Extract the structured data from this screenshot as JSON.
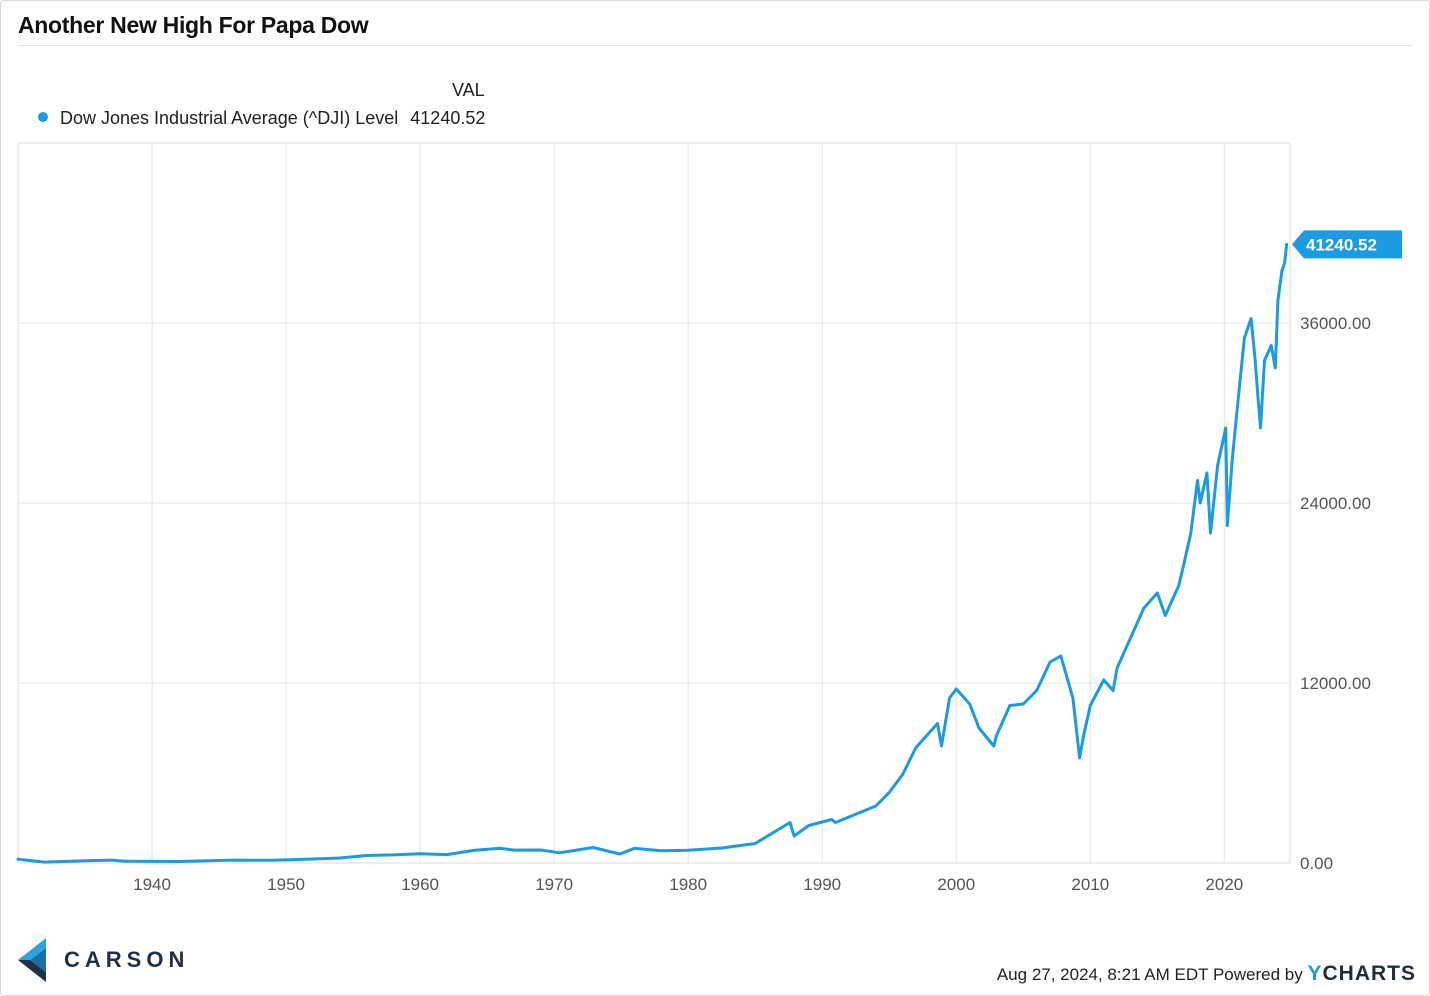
{
  "title": "Another New High For Papa Dow",
  "legend": {
    "column_header": "VAL",
    "series_label": "Dow Jones Industrial Average (^DJI) Level",
    "series_value": "41240.52"
  },
  "footer": {
    "timestamp": "Aug 27, 2024, 8:21 AM EDT",
    "powered_by": "Powered by",
    "brand_y": "Y",
    "brand_rest": "CHARTS"
  },
  "logo": {
    "text": "CARSON",
    "icon": "carson-chevron-icon"
  },
  "colors": {
    "series": "#1a9be2",
    "grid": "#e4e4e4",
    "axis_text": "#555555",
    "logo_dark": "#1f3148",
    "logo_light": "#2aa5e0"
  },
  "chart_data": {
    "type": "line",
    "title": "Another New High For Papa Dow",
    "xlabel": "",
    "ylabel": "",
    "xlim": [
      1930.0,
      2024.9
    ],
    "ylim": [
      0,
      48000
    ],
    "x_ticks": [
      1940,
      1950,
      1960,
      1970,
      1980,
      1990,
      2000,
      2010,
      2020
    ],
    "y_ticks": [
      0,
      12000,
      24000,
      36000
    ],
    "y_tick_labels": [
      "0.00",
      "12000.00",
      "24000.00",
      "36000.00"
    ],
    "grid": true,
    "legend_position": "top-left",
    "last_value_label": "41240.52",
    "series": [
      {
        "name": "Dow Jones Industrial Average (^DJI) Level",
        "x": [
          1930.0,
          1932.0,
          1935.0,
          1937.0,
          1938.0,
          1942.0,
          1946.0,
          1949.0,
          1952.0,
          1954.0,
          1956.0,
          1958.0,
          1960.0,
          1962.0,
          1964.0,
          1966.0,
          1967.0,
          1969.0,
          1970.4,
          1972.9,
          1974.9,
          1976.0,
          1978.0,
          1980.0,
          1982.5,
          1985.0,
          1987.6,
          1987.9,
          1989.0,
          1990.7,
          1991.0,
          1994.0,
          1995.0,
          1996.0,
          1997.0,
          1998.6,
          1998.9,
          1999.5,
          2000.0,
          2001.0,
          2001.7,
          2002.8,
          2003.0,
          2004.0,
          2005.0,
          2006.0,
          2007.0,
          2007.8,
          2008.7,
          2009.2,
          2009.5,
          2010.0,
          2011.0,
          2011.7,
          2012.0,
          2013.0,
          2014.0,
          2015.0,
          2015.6,
          2016.1,
          2016.6,
          2017.0,
          2017.5,
          2018.0,
          2018.2,
          2018.7,
          2018.97,
          2019.5,
          2020.1,
          2020.22,
          2020.6,
          2021.0,
          2021.5,
          2022.0,
          2022.3,
          2022.5,
          2022.7,
          2023.0,
          2023.5,
          2023.8,
          2024.0,
          2024.3,
          2024.5,
          2024.65
        ],
        "values": [
          250,
          60,
          150,
          190,
          120,
          100,
          190,
          180,
          270,
          330,
          500,
          540,
          620,
          560,
          840,
          980,
          860,
          870,
          680,
          1030,
          600,
          980,
          820,
          850,
          1000,
          1300,
          2700,
          1800,
          2500,
          2900,
          2700,
          3800,
          4700,
          5900,
          7700,
          9300,
          7800,
          11000,
          11600,
          10600,
          9000,
          7800,
          8500,
          10500,
          10600,
          11500,
          13400,
          13800,
          11000,
          7000,
          8500,
          10500,
          12200,
          11500,
          13000,
          15000,
          17000,
          18000,
          16500,
          17500,
          18500,
          20000,
          22000,
          25500,
          24000,
          26000,
          22000,
          26500,
          29000,
          22500,
          27000,
          30600,
          35000,
          36300,
          33500,
          31200,
          29000,
          33500,
          34500,
          33000,
          37500,
          39500,
          40000,
          41240.52
        ]
      }
    ]
  }
}
